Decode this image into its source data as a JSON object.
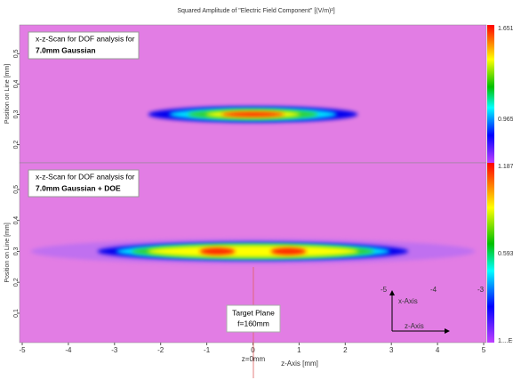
{
  "chart_data": [
    {
      "type": "heatmap",
      "title": "Squared Amplitude of \"Electric Field Component\" [(V/m)²]",
      "ylabel": "Position on Line [mm]",
      "annotation": [
        "x-z-Scan for DOF analysis for",
        "7.0mm Gaussian"
      ],
      "xlim": [
        -5,
        5
      ],
      "ylim": [
        0.14,
        0.595
      ],
      "yticks": [
        0.2,
        0.3,
        0.4,
        0.5
      ],
      "colorbar_labels": [
        "1.6512...",
        "0.9656..."
      ]
    },
    {
      "type": "heatmap",
      "xlabel": "z-Axis [mm]",
      "ylabel": "Position on Line [mm]",
      "annotation": [
        "x-z-Scan for DOF analysis for",
        "7.0mm Gaussian + DOE"
      ],
      "xlim": [
        -5,
        5
      ],
      "ylim": [
        0.005,
        0.586
      ],
      "xticks": [
        -5,
        -4,
        -3,
        -2,
        -1,
        0,
        1,
        2,
        3,
        4,
        5
      ],
      "yticks": [
        0.1,
        0.2,
        0.3,
        0.4,
        0.5
      ],
      "colorbar_labels": [
        "1.1875...",
        "0.5937...",
        "1....E-10"
      ],
      "target_label": [
        "Target Plane",
        "f=160mm"
      ],
      "z0_label": "z=0mm",
      "inset_labels": [
        "-5",
        "-4",
        "-3",
        "x-Axis",
        "z-Axis"
      ]
    }
  ]
}
